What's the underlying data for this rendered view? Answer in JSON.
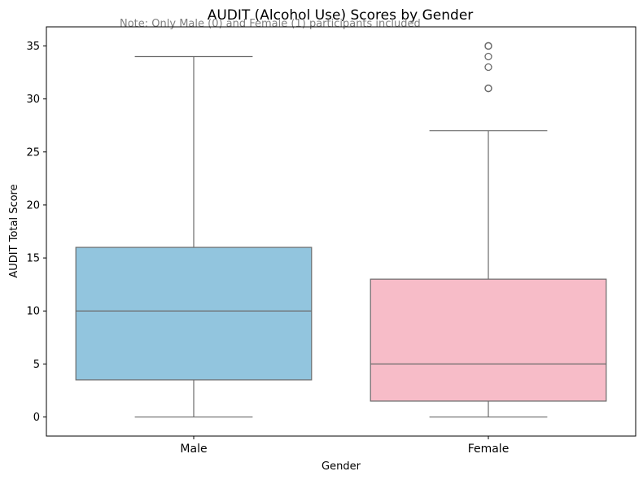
{
  "chart_data": {
    "type": "box",
    "title": "AUDIT (Alcohol Use) Scores by Gender",
    "note": "Note: Only Male (0) and Female (1) participants included",
    "xlabel": "Gender",
    "ylabel": "AUDIT Total Score",
    "ylim": [
      -1.8,
      36.8
    ],
    "yticks": [
      0,
      5,
      10,
      15,
      20,
      25,
      30,
      35
    ],
    "grid": false,
    "categories": [
      "Male",
      "Female"
    ],
    "boxes": [
      {
        "name": "Male",
        "color": "#92c5de",
        "min": 0,
        "q1": 3.5,
        "median": 10,
        "q3": 16,
        "max": 34,
        "outliers": []
      },
      {
        "name": "Female",
        "color": "#f7bcc8",
        "min": 0,
        "q1": 1.5,
        "median": 5,
        "q3": 13,
        "max": 27,
        "outliers": [
          31,
          31,
          33,
          34,
          35,
          35
        ]
      }
    ],
    "line_color": "#6b6b6b"
  }
}
